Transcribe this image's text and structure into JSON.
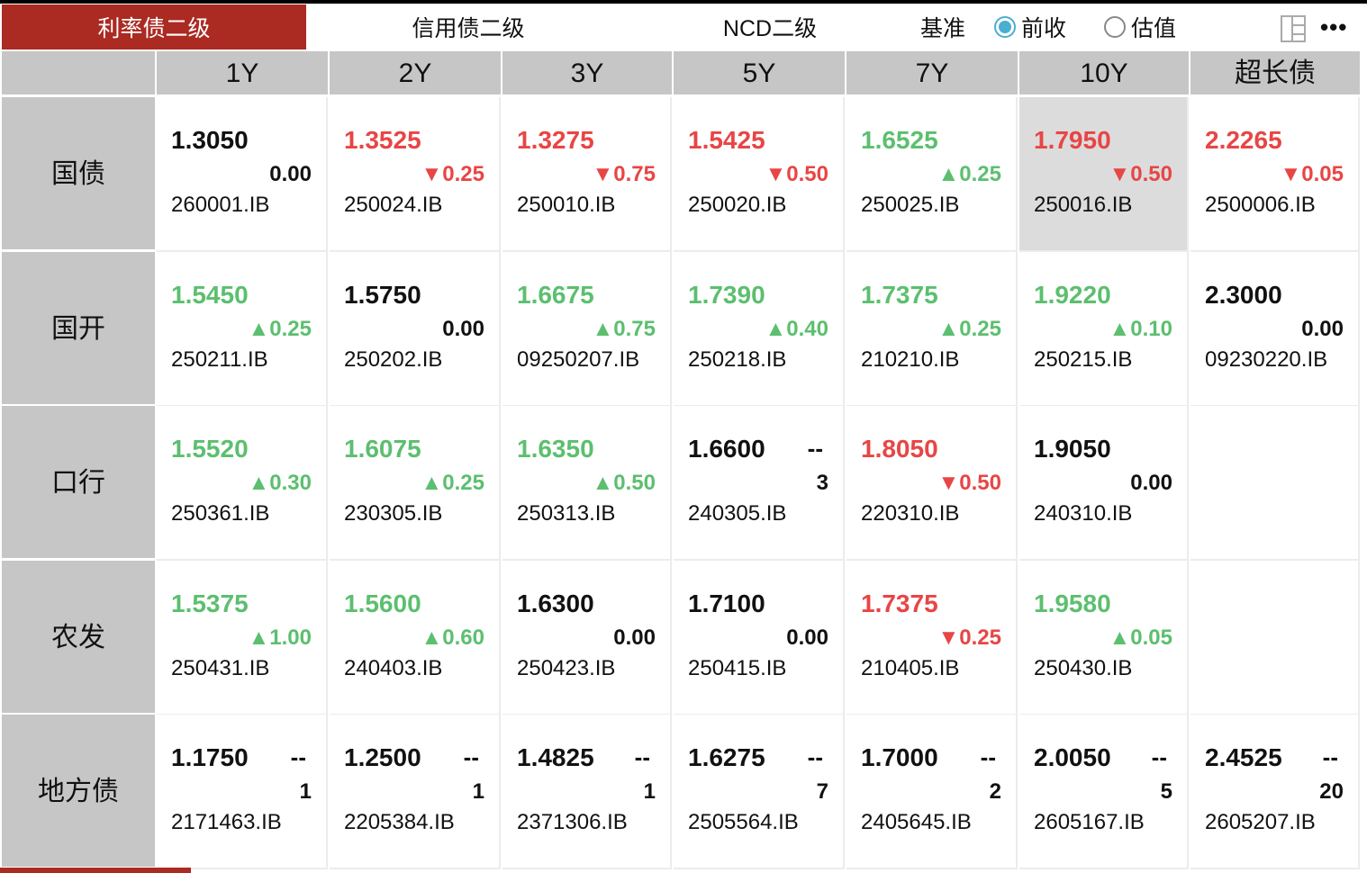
{
  "tabs": [
    {
      "label": "利率债二级",
      "active": true
    },
    {
      "label": "信用债二级",
      "active": false
    },
    {
      "label": "NCD二级",
      "active": false
    }
  ],
  "benchmark": {
    "label": "基准",
    "options": [
      {
        "label": "前收",
        "selected": true
      },
      {
        "label": "估值",
        "selected": false
      }
    ]
  },
  "icons": {
    "layout": "layout-icon",
    "more": "more-icon"
  },
  "more_label": "•••",
  "colors": {
    "accent": "#ab2a22",
    "up": "#5cbf6f",
    "down": "#e84545",
    "radio": "#4aaed0"
  },
  "columns": [
    "1Y",
    "2Y",
    "3Y",
    "5Y",
    "7Y",
    "10Y",
    "超长债"
  ],
  "rows": [
    {
      "label": "国债",
      "cells": [
        {
          "rate": "1.3050",
          "dir": "flat",
          "change": "0.00",
          "code": "260001.IB"
        },
        {
          "rate": "1.3525",
          "dir": "down",
          "change": "▼0.25",
          "code": "250024.IB"
        },
        {
          "rate": "1.3275",
          "dir": "down",
          "change": "▼0.75",
          "code": "250010.IB"
        },
        {
          "rate": "1.5425",
          "dir": "down",
          "change": "▼0.50",
          "code": "250020.IB"
        },
        {
          "rate": "1.6525",
          "dir": "up",
          "change": "▲0.25",
          "code": "250025.IB"
        },
        {
          "rate": "1.7950",
          "dir": "down",
          "change": "▼0.50",
          "code": "250016.IB",
          "highlight": true
        },
        {
          "rate": "2.2265",
          "dir": "down",
          "change": "▼0.05",
          "code": "2500006.IB"
        }
      ]
    },
    {
      "label": "国开",
      "cells": [
        {
          "rate": "1.5450",
          "dir": "up",
          "change": "▲0.25",
          "code": "250211.IB"
        },
        {
          "rate": "1.5750",
          "dir": "flat",
          "change": "0.00",
          "code": "250202.IB"
        },
        {
          "rate": "1.6675",
          "dir": "up",
          "change": "▲0.75",
          "code": "09250207.IB"
        },
        {
          "rate": "1.7390",
          "dir": "up",
          "change": "▲0.40",
          "code": "250218.IB"
        },
        {
          "rate": "1.7375",
          "dir": "up",
          "change": "▲0.25",
          "code": "210210.IB"
        },
        {
          "rate": "1.9220",
          "dir": "up",
          "change": "▲0.10",
          "code": "250215.IB"
        },
        {
          "rate": "2.3000",
          "dir": "flat",
          "change": "0.00",
          "code": "09230220.IB"
        }
      ]
    },
    {
      "label": "口行",
      "cells": [
        {
          "rate": "1.5520",
          "dir": "up",
          "change": "▲0.30",
          "code": "250361.IB"
        },
        {
          "rate": "1.6075",
          "dir": "up",
          "change": "▲0.25",
          "code": "230305.IB"
        },
        {
          "rate": "1.6350",
          "dir": "up",
          "change": "▲0.50",
          "code": "250313.IB"
        },
        {
          "rate": "1.6600",
          "dir": "flat",
          "dash": "--",
          "change": "3",
          "code": "240305.IB"
        },
        {
          "rate": "1.8050",
          "dir": "down",
          "change": "▼0.50",
          "code": "220310.IB"
        },
        {
          "rate": "1.9050",
          "dir": "flat",
          "change": "0.00",
          "code": "240310.IB"
        },
        null
      ]
    },
    {
      "label": "农发",
      "cells": [
        {
          "rate": "1.5375",
          "dir": "up",
          "change": "▲1.00",
          "code": "250431.IB"
        },
        {
          "rate": "1.5600",
          "dir": "up",
          "change": "▲0.60",
          "code": "240403.IB"
        },
        {
          "rate": "1.6300",
          "dir": "flat",
          "change": "0.00",
          "code": "250423.IB"
        },
        {
          "rate": "1.7100",
          "dir": "flat",
          "change": "0.00",
          "code": "250415.IB"
        },
        {
          "rate": "1.7375",
          "dir": "down",
          "change": "▼0.25",
          "code": "210405.IB"
        },
        {
          "rate": "1.9580",
          "dir": "up",
          "change": "▲0.05",
          "code": "250430.IB"
        },
        null
      ]
    },
    {
      "label": "地方债",
      "cells": [
        {
          "rate": "1.1750",
          "dir": "flat",
          "dash": "--",
          "change": "1",
          "code": "2171463.IB"
        },
        {
          "rate": "1.2500",
          "dir": "flat",
          "dash": "--",
          "change": "1",
          "code": "2205384.IB"
        },
        {
          "rate": "1.4825",
          "dir": "flat",
          "dash": "--",
          "change": "1",
          "code": "2371306.IB"
        },
        {
          "rate": "1.6275",
          "dir": "flat",
          "dash": "--",
          "change": "7",
          "code": "2505564.IB"
        },
        {
          "rate": "1.7000",
          "dir": "flat",
          "dash": "--",
          "change": "2",
          "code": "2405645.IB"
        },
        {
          "rate": "2.0050",
          "dir": "flat",
          "dash": "--",
          "change": "5",
          "code": "2605167.IB"
        },
        {
          "rate": "2.4525",
          "dir": "flat",
          "dash": "--",
          "change": "20",
          "code": "2605207.IB"
        }
      ]
    }
  ]
}
